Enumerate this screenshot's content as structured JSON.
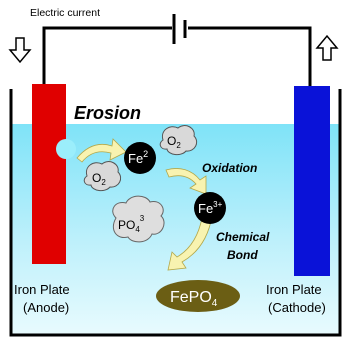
{
  "colors": {
    "water_top": "#7fe3f8",
    "water_bottom": "#dcf7fd",
    "anode": "#e00000",
    "cathode": "#0a12d8",
    "wire": "#000000",
    "ion": "#000000",
    "oxygen": "#d9d9d9",
    "phosphate": "#dedede",
    "ferric_phosphate": "#6b5e14",
    "flow_arrow": "#f8f3b0"
  },
  "labels": {
    "electric_current": "Electric current",
    "erosion": "Erosion",
    "oxidation": "Oxidation",
    "chemical_bond_1": "Chemical",
    "chemical_bond_2": "Bond",
    "anode_1": "Iron Plate",
    "anode_2": "(Anode)",
    "cathode_1": "Iron Plate",
    "cathode_2": "(Cathode)"
  },
  "species": {
    "fe2_symbol": "Fe",
    "fe2_charge": "2",
    "fe3_symbol": "Fe",
    "fe3_charge": "3+",
    "o2_symbol": "O",
    "o2_sub": "2",
    "po4_symbol": "PO",
    "po4_sub": "4",
    "po4_charge": "3",
    "fepo4_symbol": "FePO",
    "fepo4_sub": "4"
  },
  "icons": {
    "current_in": "down-arrow-icon",
    "current_out": "up-arrow-icon",
    "battery": "battery-icon"
  }
}
